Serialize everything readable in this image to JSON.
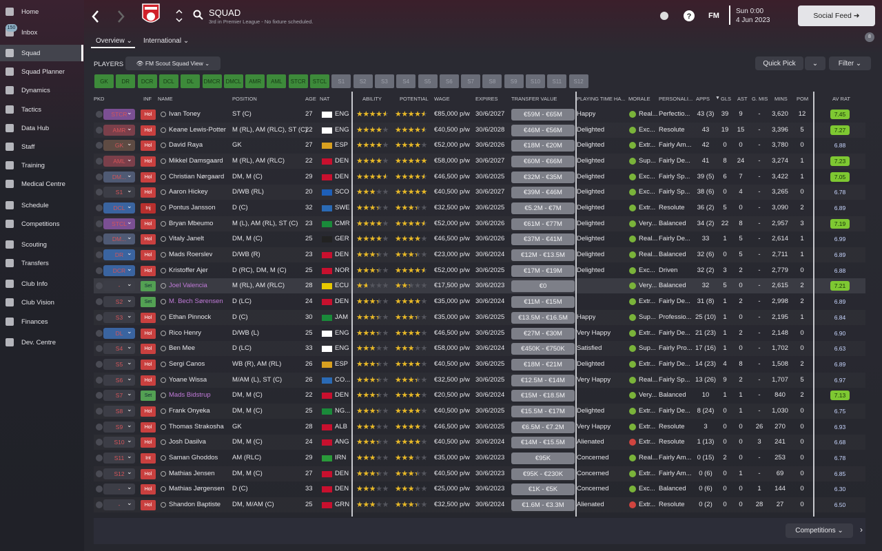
{
  "sidebar": {
    "items": [
      "Home",
      "Inbox",
      "Squad",
      "Squad Planner",
      "Dynamics",
      "Tactics",
      "Data Hub",
      "Staff",
      "Training",
      "Medical Centre",
      "Schedule",
      "Competitions",
      "Scouting",
      "Transfers",
      "Club Info",
      "Club Vision",
      "Finances",
      "Dev. Centre"
    ],
    "inbox_badge": "150"
  },
  "header": {
    "title": "SQUAD",
    "subtitle": "3rd in Premier League - No fixture scheduled.",
    "logo": "FM",
    "time": "Sun 0:00",
    "date": "4 Jun 2023",
    "social_feed": "Social Feed",
    "feed_badge": "8"
  },
  "tabs": [
    "Overview",
    "International"
  ],
  "toolbar": {
    "label": "PLAYERS",
    "view": "FM Scout Squad View",
    "quick_pick": "Quick Pick",
    "filter": "Filter"
  },
  "position_filters": {
    "active": [
      "GK",
      "DR",
      "DCR",
      "DCL",
      "DL",
      "DMCR",
      "DMCL",
      "AMR",
      "AML",
      "STCR",
      "STCL"
    ],
    "subs": [
      "S1",
      "S2",
      "S3",
      "S4",
      "S5",
      "S6",
      "S7",
      "S8",
      "S9",
      "S10",
      "S11",
      "S12"
    ]
  },
  "table": {
    "columns": [
      "PKD",
      "INF",
      "NAME",
      "POSITION",
      "AGE",
      "NAT",
      "ABILITY",
      "POTENTIAL",
      "WAGE",
      "EXPIRES",
      "TRANSFER VALUE",
      "PLAYING TIME HA...",
      "MORALE",
      "PERSONALI...",
      "APPS",
      "GLS",
      "AST",
      "G. MIS",
      "MINS",
      "POM",
      "AV RAT"
    ],
    "rows": [
      {
        "pkd": "STCR",
        "inf": "Hol",
        "name": "Ivan Toney",
        "position": "ST (C)",
        "age": "27",
        "nat": "ENG",
        "ability": 4,
        "potential": 4,
        "wage": "€85,000 p/w",
        "expires": "30/6/2027",
        "value": "€59M - €65M",
        "playing_time": "Happy",
        "morale": "Real...",
        "personality": "Perfectio...",
        "apps": "43 (3)",
        "gls": "39",
        "ast": "9",
        "gmis": "-",
        "mins": "3,620",
        "pom": "12",
        "av_rat": "7.45"
      },
      {
        "pkd": "AMR",
        "inf": "Hol",
        "name": "Keane Lewis-Potter",
        "position": "M (RL), AM (RLC), ST (C)",
        "age": "22",
        "nat": "ENG",
        "ability": 3.5,
        "potential": 4,
        "wage": "€40,500 p/w",
        "expires": "30/6/2028",
        "value": "€46M - €56M",
        "playing_time": "Delighted",
        "morale": "Exc...",
        "personality": "Resolute",
        "apps": "43",
        "gls": "19",
        "ast": "15",
        "gmis": "-",
        "mins": "3,396",
        "pom": "5",
        "av_rat": "7.27"
      },
      {
        "pkd": "GK",
        "inf": "Hol",
        "name": "David Raya",
        "position": "GK",
        "age": "27",
        "nat": "ESP",
        "ability": 3.5,
        "potential": 3.5,
        "wage": "€52,000 p/w",
        "expires": "30/6/2026",
        "value": "€18M - €20M",
        "playing_time": "Delighted",
        "morale": "Extr...",
        "personality": "Fairly Am...",
        "apps": "42",
        "gls": "0",
        "ast": "0",
        "gmis": "-",
        "mins": "3,780",
        "pom": "0",
        "av_rat": "6.88"
      },
      {
        "pkd": "AML",
        "inf": "Hol",
        "name": "Mikkel Damsgaard",
        "position": "M (RL), AM (RLC)",
        "age": "22",
        "nat": "DEN",
        "ability": 3.5,
        "potential": 4.5,
        "wage": "€58,000 p/w",
        "expires": "30/6/2027",
        "value": "€60M - €66M",
        "playing_time": "Delighted",
        "morale": "Sup...",
        "personality": "Fairly De...",
        "apps": "41",
        "gls": "8",
        "ast": "24",
        "gmis": "-",
        "mins": "3,274",
        "pom": "1",
        "av_rat": "7.23"
      },
      {
        "pkd": "DM...",
        "inf": "Hol",
        "name": "Christian Nørgaard",
        "position": "DM, M (C)",
        "age": "29",
        "nat": "DEN",
        "ability": 4,
        "potential": 4,
        "wage": "€46,500 p/w",
        "expires": "30/6/2025",
        "value": "€32M - €35M",
        "playing_time": "Delighted",
        "morale": "Exc...",
        "personality": "Fairly Sp...",
        "apps": "39 (5)",
        "gls": "6",
        "ast": "7",
        "gmis": "-",
        "mins": "3,422",
        "pom": "1",
        "av_rat": "7.05"
      },
      {
        "pkd": "S1",
        "inf": "Hol",
        "name": "Aaron Hickey",
        "position": "D/WB (RL)",
        "age": "20",
        "nat": "SCO",
        "ability": 2.5,
        "potential": 4.5,
        "wage": "€40,500 p/w",
        "expires": "30/6/2027",
        "value": "€39M - €46M",
        "playing_time": "Delighted",
        "morale": "Exc...",
        "personality": "Fairly Sp...",
        "apps": "38 (6)",
        "gls": "0",
        "ast": "4",
        "gmis": "-",
        "mins": "3,265",
        "pom": "0",
        "av_rat": "6.78"
      },
      {
        "pkd": "DCL",
        "inf": "Inj",
        "name": "Pontus Jansson",
        "position": "D (C)",
        "age": "32",
        "nat": "SWE",
        "ability": 3,
        "potential": 3,
        "wage": "€32,500 p/w",
        "expires": "30/6/2025",
        "value": "€5.2M - €7M",
        "playing_time": "Delighted",
        "morale": "Extr...",
        "personality": "Resolute",
        "apps": "36 (2)",
        "gls": "5",
        "ast": "0",
        "gmis": "-",
        "mins": "3,090",
        "pom": "2",
        "av_rat": "6.89"
      },
      {
        "pkd": "STCL",
        "inf": "Hol",
        "name": "Bryan Mbeumo",
        "position": "M (L), AM (RL), ST (C)",
        "age": "23",
        "nat": "CMR",
        "ability": 3.5,
        "potential": 4,
        "wage": "€52,000 p/w",
        "expires": "30/6/2026",
        "value": "€61M - €77M",
        "playing_time": "Delighted",
        "morale": "Very...",
        "personality": "Balanced",
        "apps": "34 (2)",
        "gls": "22",
        "ast": "8",
        "gmis": "-",
        "mins": "2,957",
        "pom": "3",
        "av_rat": "7.19"
      },
      {
        "pkd": "DM...",
        "inf": "Hol",
        "name": "Vitaly Janelt",
        "position": "DM, M (C)",
        "age": "25",
        "nat": "GER",
        "ability": 3.5,
        "potential": 3.5,
        "wage": "€46,500 p/w",
        "expires": "30/6/2026",
        "value": "€37M - €41M",
        "playing_time": "Delighted",
        "morale": "Real...",
        "personality": "Fairly De...",
        "apps": "33",
        "gls": "1",
        "ast": "5",
        "gmis": "-",
        "mins": "2,614",
        "pom": "1",
        "av_rat": "6.99"
      },
      {
        "pkd": "DR",
        "inf": "Hol",
        "name": "Mads Roerslev",
        "position": "D/WB (R)",
        "age": "23",
        "nat": "DEN",
        "ability": 3,
        "potential": 3,
        "wage": "€23,000 p/w",
        "expires": "30/6/2024",
        "value": "€12M - €13.5M",
        "playing_time": "Delighted",
        "morale": "Real...",
        "personality": "Balanced",
        "apps": "32 (6)",
        "gls": "0",
        "ast": "5",
        "gmis": "-",
        "mins": "2,711",
        "pom": "1",
        "av_rat": "6.89"
      },
      {
        "pkd": "DCR",
        "inf": "Hol",
        "name": "Kristoffer Ajer",
        "position": "D (RC), DM, M (C)",
        "age": "25",
        "nat": "NOR",
        "ability": 3,
        "potential": 4,
        "wage": "€52,000 p/w",
        "expires": "30/6/2025",
        "value": "€17M - €19M",
        "playing_time": "Delighted",
        "morale": "Exc...",
        "personality": "Driven",
        "apps": "32 (2)",
        "gls": "3",
        "ast": "2",
        "gmis": "-",
        "mins": "2,779",
        "pom": "0",
        "av_rat": "6.88"
      },
      {
        "pkd": "-",
        "inf": "Set",
        "name": "Joel Valencia",
        "position": "M (RL), AM (RLC)",
        "age": "28",
        "nat": "ECU",
        "ability": 1.5,
        "potential": 2,
        "wage": "€17,500 p/w",
        "expires": "30/6/2023",
        "value": "€0",
        "playing_time": null,
        "morale": "Very...",
        "personality": "Balanced",
        "apps": "32",
        "gls": "5",
        "ast": "0",
        "gmis": "-",
        "mins": "2,615",
        "pom": "2",
        "av_rat": "7.21"
      },
      {
        "pkd": "S2",
        "inf": "Set",
        "name": "M. Bech Sørensen",
        "position": "D (LC)",
        "age": "24",
        "nat": "DEN",
        "ability": 3,
        "potential": 3.5,
        "wage": "€35,000 p/w",
        "expires": "30/6/2024",
        "value": "€11M - €15M",
        "playing_time": null,
        "morale": "Extr...",
        "personality": "Fairly De...",
        "apps": "31 (8)",
        "gls": "1",
        "ast": "2",
        "gmis": "-",
        "mins": "2,998",
        "pom": "2",
        "av_rat": "6.89"
      },
      {
        "pkd": "S3",
        "inf": "Hol",
        "name": "Ethan Pinnock",
        "position": "D (C)",
        "age": "30",
        "nat": "JAM",
        "ability": 3,
        "potential": 3,
        "wage": "€35,000 p/w",
        "expires": "30/6/2025",
        "value": "€13.5M - €16.5M",
        "playing_time": "Happy",
        "morale": "Sup...",
        "personality": "Professio...",
        "apps": "25 (10)",
        "gls": "1",
        "ast": "0",
        "gmis": "-",
        "mins": "2,195",
        "pom": "1",
        "av_rat": "6.84"
      },
      {
        "pkd": "DL",
        "inf": "Hol",
        "name": "Rico Henry",
        "position": "D/WB (L)",
        "age": "25",
        "nat": "ENG",
        "ability": 3,
        "potential": 3.5,
        "wage": "€46,500 p/w",
        "expires": "30/6/2025",
        "value": "€27M - €30M",
        "playing_time": "Very Happy",
        "morale": "Extr...",
        "personality": "Fairly De...",
        "apps": "21 (23)",
        "gls": "1",
        "ast": "2",
        "gmis": "-",
        "mins": "2,148",
        "pom": "0",
        "av_rat": "6.90"
      },
      {
        "pkd": "S4",
        "inf": "Hol",
        "name": "Ben Mee",
        "position": "D (LC)",
        "age": "33",
        "nat": "ENG",
        "ability": 2.5,
        "potential": 2.5,
        "wage": "€58,000 p/w",
        "expires": "30/6/2024",
        "value": "€450K - €750K",
        "playing_time": "Satisfied",
        "morale": "Sup...",
        "personality": "Fairly Pro...",
        "apps": "17 (16)",
        "gls": "1",
        "ast": "0",
        "gmis": "-",
        "mins": "1,702",
        "pom": "0",
        "av_rat": "6.63"
      },
      {
        "pkd": "S5",
        "inf": "Hol",
        "name": "Sergi Canos",
        "position": "WB (R), AM (RL)",
        "age": "26",
        "nat": "ESP",
        "ability": 3,
        "potential": 3.5,
        "wage": "€40,500 p/w",
        "expires": "30/6/2025",
        "value": "€18M - €21M",
        "playing_time": "Delighted",
        "morale": "Extr...",
        "personality": "Fairly De...",
        "apps": "14 (23)",
        "gls": "4",
        "ast": "8",
        "gmis": "-",
        "mins": "1,508",
        "pom": "2",
        "av_rat": "6.89"
      },
      {
        "pkd": "S6",
        "inf": "Hol",
        "name": "Yoane Wissa",
        "position": "M/AM (L), ST (C)",
        "age": "26",
        "nat": "CO...",
        "ability": 3,
        "potential": 3,
        "wage": "€32,500 p/w",
        "expires": "30/6/2025",
        "value": "€12.5M - €14M",
        "playing_time": "Very Happy",
        "morale": "Real...",
        "personality": "Fairly Sp...",
        "apps": "13 (26)",
        "gls": "9",
        "ast": "2",
        "gmis": "-",
        "mins": "1,707",
        "pom": "5",
        "av_rat": "6.97"
      },
      {
        "pkd": "S7",
        "inf": "Set",
        "name": "Mads Bidstrup",
        "position": "DM, M (C)",
        "age": "22",
        "nat": "DEN",
        "ability": 3,
        "potential": 3.5,
        "wage": "€20,500 p/w",
        "expires": "30/6/2024",
        "value": "€15M - €18.5M",
        "playing_time": null,
        "morale": "Very...",
        "personality": "Balanced",
        "apps": "10",
        "gls": "1",
        "ast": "1",
        "gmis": "-",
        "mins": "840",
        "pom": "2",
        "av_rat": "7.13"
      },
      {
        "pkd": "S8",
        "inf": "Hol",
        "name": "Frank Onyeka",
        "position": "DM, M (C)",
        "age": "25",
        "nat": "NG...",
        "ability": 3,
        "potential": 3.5,
        "wage": "€40,500 p/w",
        "expires": "30/6/2025",
        "value": "€15.5M - €17M",
        "playing_time": "Delighted",
        "morale": "Extr...",
        "personality": "Fairly De...",
        "apps": "8 (24)",
        "gls": "0",
        "ast": "1",
        "gmis": "-",
        "mins": "1,030",
        "pom": "0",
        "av_rat": "6.75"
      },
      {
        "pkd": "S9",
        "inf": "Hol",
        "name": "Thomas Strakosha",
        "position": "GK",
        "age": "28",
        "nat": "ALB",
        "ability": 2.5,
        "potential": 3.5,
        "wage": "€46,500 p/w",
        "expires": "30/6/2025",
        "value": "€6.5M - €7.2M",
        "playing_time": "Very Happy",
        "morale": "Extr...",
        "personality": "Resolute",
        "apps": "3",
        "gls": "0",
        "ast": "0",
        "gmis": "26",
        "mins": "270",
        "pom": "0",
        "av_rat": "6.93"
      },
      {
        "pkd": "S10",
        "inf": "Hol",
        "name": "Josh Dasilva",
        "position": "DM, M (C)",
        "age": "24",
        "nat": "ANG",
        "ability": 3,
        "potential": 3.5,
        "wage": "€40,500 p/w",
        "expires": "30/6/2024",
        "value": "€14M - €15.5M",
        "playing_time": "Alienated",
        "morale": "Extr...",
        "personality": "Resolute",
        "apps": "1 (13)",
        "gls": "0",
        "ast": "0",
        "gmis": "3",
        "mins": "241",
        "pom": "0",
        "av_rat": "6.68"
      },
      {
        "pkd": "S11",
        "inf": "Int",
        "name": "Saman Ghoddos",
        "position": "AM (RLC)",
        "age": "29",
        "nat": "IRN",
        "ability": 2.5,
        "potential": 2.5,
        "wage": "€35,000 p/w",
        "expires": "30/6/2023",
        "value": "€95K",
        "playing_time": "Concerned",
        "morale": "Real...",
        "personality": "Fairly Am...",
        "apps": "0 (15)",
        "gls": "2",
        "ast": "0",
        "gmis": "-",
        "mins": "253",
        "pom": "0",
        "av_rat": "6.78"
      },
      {
        "pkd": "S12",
        "inf": "Hol",
        "name": "Mathias Jensen",
        "position": "DM, M (C)",
        "age": "27",
        "nat": "DEN",
        "ability": 3,
        "potential": 3,
        "wage": "€40,500 p/w",
        "expires": "30/6/2023",
        "value": "€95K - €230K",
        "playing_time": "Concerned",
        "morale": "Extr...",
        "personality": "Fairly Am...",
        "apps": "0 (6)",
        "gls": "0",
        "ast": "1",
        "gmis": "-",
        "mins": "69",
        "pom": "0",
        "av_rat": "6.85"
      },
      {
        "pkd": "-",
        "inf": "Hol",
        "name": "Mathias Jørgensen",
        "position": "D (C)",
        "age": "33",
        "nat": "DEN",
        "ability": 2.5,
        "potential": 2.5,
        "wage": "€25,000 p/w",
        "expires": "30/6/2023",
        "value": "€1K - €5K",
        "playing_time": "Concerned",
        "morale": "Exc...",
        "personality": "Balanced",
        "apps": "0 (6)",
        "gls": "0",
        "ast": "0",
        "gmis": "1",
        "mins": "144",
        "pom": "0",
        "av_rat": "6.30"
      },
      {
        "pkd": "-",
        "inf": "Hol",
        "name": "Shandon Baptiste",
        "position": "DM, M/AM (C)",
        "age": "25",
        "nat": "GRN",
        "ability": 2.5,
        "potential": 3,
        "wage": "€32,500 p/w",
        "expires": "30/6/2024",
        "value": "€1.6M - €3.3M",
        "playing_time": "Alienated",
        "morale": "Extr...",
        "personality": "Resolute",
        "apps": "0 (2)",
        "gls": "0",
        "ast": "0",
        "gmis": "28",
        "mins": "27",
        "pom": "0",
        "av_rat": "6.50"
      }
    ]
  },
  "footer": {
    "competitions": "Competitions"
  }
}
